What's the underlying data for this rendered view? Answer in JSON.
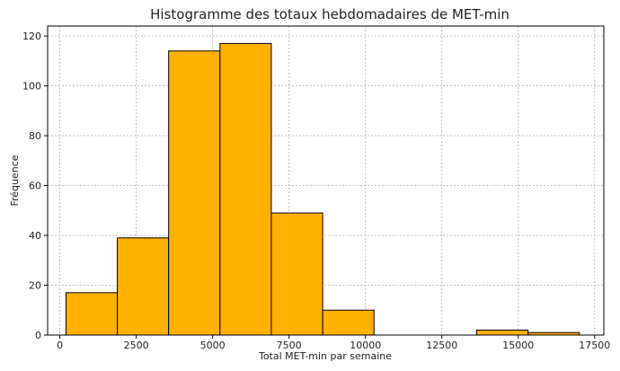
{
  "chart_data": {
    "type": "bar",
    "title": "Histogramme des totaux hebdomadaires de MET-min",
    "xlabel": "Total MET-min par semaine",
    "ylabel": "Fréquence",
    "xlim": [
      -400,
      17800
    ],
    "ylim": [
      0,
      124
    ],
    "xticks": [
      0,
      2500,
      5000,
      7500,
      10000,
      12500,
      15000,
      17500
    ],
    "yticks": [
      0,
      20,
      40,
      60,
      80,
      100,
      120
    ],
    "grid": true,
    "bar_color": "#ffb000",
    "bins": [
      {
        "x0": 200,
        "x1": 1880,
        "count": 17
      },
      {
        "x0": 1880,
        "x1": 3560,
        "count": 39
      },
      {
        "x0": 3560,
        "x1": 5240,
        "count": 114
      },
      {
        "x0": 5240,
        "x1": 6920,
        "count": 117
      },
      {
        "x0": 6920,
        "x1": 8600,
        "count": 49
      },
      {
        "x0": 8600,
        "x1": 10280,
        "count": 10
      },
      {
        "x0": 10280,
        "x1": 11960,
        "count": 0
      },
      {
        "x0": 11960,
        "x1": 13640,
        "count": 0
      },
      {
        "x0": 13640,
        "x1": 15320,
        "count": 2
      },
      {
        "x0": 15320,
        "x1": 17000,
        "count": 1
      }
    ]
  }
}
